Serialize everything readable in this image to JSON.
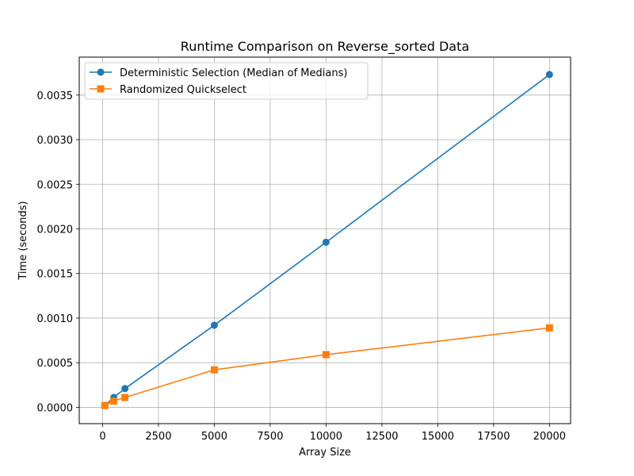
{
  "chart_data": {
    "type": "line",
    "title": "Runtime Comparison on Reverse_sorted Data",
    "xlabel": "Array Size",
    "ylabel": "Time (seconds)",
    "xlim": [
      -1045,
      20945
    ],
    "ylim": [
      -0.000183,
      0.003925
    ],
    "xticks": [
      0,
      2500,
      5000,
      7500,
      10000,
      12500,
      15000,
      17500,
      20000
    ],
    "xtick_labels": [
      "0",
      "2500",
      "5000",
      "7500",
      "10000",
      "12500",
      "15000",
      "17500",
      "20000"
    ],
    "yticks": [
      0.0,
      0.0005,
      0.001,
      0.0015,
      0.002,
      0.0025,
      0.003,
      0.0035
    ],
    "ytick_labels": [
      "0.0000",
      "0.0005",
      "0.0010",
      "0.0015",
      "0.0020",
      "0.0025",
      "0.0030",
      "0.0035"
    ],
    "grid": true,
    "legend_position": "upper-left",
    "x": [
      100,
      500,
      1000,
      5000,
      10000,
      20000
    ],
    "series": [
      {
        "name": "Deterministic Selection (Median of Medians)",
        "values": [
          2e-05,
          0.00011,
          0.00021,
          0.00092,
          0.00185,
          0.00373
        ],
        "color": "#1f77b4",
        "marker": "circle"
      },
      {
        "name": "Randomized Quickselect",
        "values": [
          2e-05,
          7e-05,
          0.00011,
          0.00042,
          0.00059,
          0.00089
        ],
        "color": "#ff7f0e",
        "marker": "square"
      }
    ]
  }
}
